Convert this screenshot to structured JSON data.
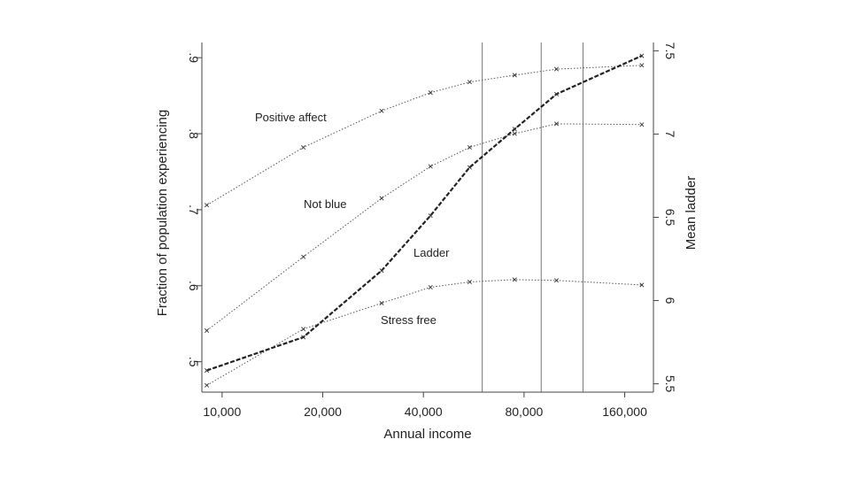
{
  "chart_data": {
    "type": "line",
    "title": "",
    "xlabel": "Annual income",
    "ylabel_left": "Fraction of population experiencing",
    "ylabel_right": "Mean ladder",
    "x_scale": "log",
    "x_ticks": [
      10000,
      20000,
      40000,
      80000,
      160000
    ],
    "x_tick_labels": [
      "10,000",
      "20,000",
      "40,000",
      "80,000",
      "160,000"
    ],
    "xlim": [
      8700,
      195000
    ],
    "ylim_left": [
      0.46,
      0.92
    ],
    "y_ticks_left": [
      0.5,
      0.6,
      0.7,
      0.8,
      0.9
    ],
    "y_tick_labels_left": [
      ".5",
      ".6",
      ".7",
      ".8",
      ".9"
    ],
    "ylim_right": [
      5.45,
      7.55
    ],
    "y_ticks_right": [
      5.5,
      6,
      6.5,
      7,
      7.5
    ],
    "y_tick_labels_right": [
      "5.5",
      "6",
      "6.5",
      "7",
      "7.5"
    ],
    "vlines": [
      60000,
      90000,
      120000
    ],
    "x": [
      9000,
      17500,
      30000,
      42000,
      55000,
      75000,
      100000,
      180000
    ],
    "series": [
      {
        "name": "Positive affect",
        "axis": "left",
        "style": "dotted",
        "values": [
          0.706,
          0.782,
          0.83,
          0.854,
          0.868,
          0.877,
          0.885,
          0.89
        ]
      },
      {
        "name": "Not blue",
        "axis": "left",
        "style": "dotted",
        "values": [
          0.541,
          0.638,
          0.715,
          0.757,
          0.782,
          0.8,
          0.813,
          0.812
        ]
      },
      {
        "name": "Stress free",
        "axis": "left",
        "style": "dotted",
        "values": [
          0.469,
          0.543,
          0.577,
          0.598,
          0.605,
          0.608,
          0.607,
          0.601
        ]
      },
      {
        "name": "Ladder",
        "axis": "right",
        "style": "dashed",
        "values": [
          5.58,
          5.78,
          6.18,
          6.51,
          6.8,
          7.03,
          7.24,
          7.47
        ]
      }
    ],
    "grid": false,
    "legend": "none"
  }
}
